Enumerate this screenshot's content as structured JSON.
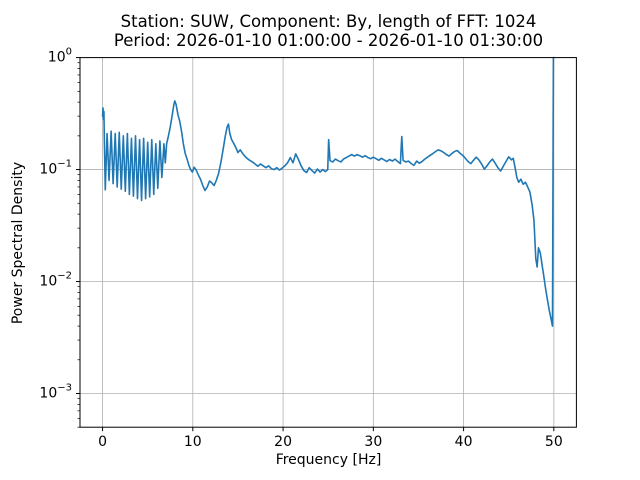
{
  "figure": {
    "title_line1": "Station: SUW, Component: By, length of FFT: 1024",
    "title_line2": "Period: 2026-01-10 01:00:00 - 2026-01-10 01:30:00",
    "xlabel": "Frequency [Hz]",
    "ylabel": "Power Spectral Density"
  },
  "chart_data": {
    "type": "line",
    "title": "Station: SUW, Component: By, length of FFT: 1024\nPeriod: 2026-01-10 01:00:00 - 2026-01-10 01:30:00",
    "xlabel": "Frequency [Hz]",
    "ylabel": "Power Spectral Density",
    "x_scale": "linear",
    "y_scale": "log",
    "xlim": [
      -2.5,
      52.5
    ],
    "ylim": [
      0.0005,
      1.0
    ],
    "x_ticks": [
      0,
      10,
      20,
      30,
      40,
      50
    ],
    "y_tick_exponents": [
      0,
      -1,
      -2,
      -3
    ],
    "grid": true,
    "legend": false,
    "line_color": "#1f77b4",
    "grid_color": "#b0b0b0",
    "spine_color": "#000000",
    "series": [
      {
        "name": "PSD",
        "points": [
          [
            0.0,
            0.3
          ],
          [
            0.05,
            0.355
          ],
          [
            0.1,
            0.28
          ],
          [
            0.15,
            0.33
          ],
          [
            0.2,
            0.18
          ],
          [
            0.3,
            0.066
          ],
          [
            0.5,
            0.21
          ],
          [
            0.72,
            0.08
          ],
          [
            0.95,
            0.22
          ],
          [
            1.17,
            0.075
          ],
          [
            1.4,
            0.21
          ],
          [
            1.62,
            0.07
          ],
          [
            1.85,
            0.215
          ],
          [
            2.07,
            0.067
          ],
          [
            2.3,
            0.2
          ],
          [
            2.52,
            0.064
          ],
          [
            2.75,
            0.21
          ],
          [
            2.97,
            0.06
          ],
          [
            3.2,
            0.19
          ],
          [
            3.42,
            0.058
          ],
          [
            3.65,
            0.2
          ],
          [
            3.87,
            0.055
          ],
          [
            4.1,
            0.185
          ],
          [
            4.32,
            0.053
          ],
          [
            4.55,
            0.19
          ],
          [
            4.77,
            0.055
          ],
          [
            5.0,
            0.175
          ],
          [
            5.22,
            0.057
          ],
          [
            5.45,
            0.185
          ],
          [
            5.67,
            0.06
          ],
          [
            5.9,
            0.17
          ],
          [
            6.12,
            0.068
          ],
          [
            6.35,
            0.18
          ],
          [
            6.57,
            0.085
          ],
          [
            6.8,
            0.17
          ],
          [
            6.95,
            0.115
          ],
          [
            7.1,
            0.17
          ],
          [
            7.3,
            0.2
          ],
          [
            7.5,
            0.24
          ],
          [
            7.7,
            0.3
          ],
          [
            7.9,
            0.38
          ],
          [
            8.0,
            0.41
          ],
          [
            8.15,
            0.38
          ],
          [
            8.35,
            0.31
          ],
          [
            8.55,
            0.27
          ],
          [
            8.75,
            0.22
          ],
          [
            8.95,
            0.17
          ],
          [
            9.15,
            0.14
          ],
          [
            9.35,
            0.125
          ],
          [
            9.55,
            0.11
          ],
          [
            9.75,
            0.1
          ],
          [
            9.95,
            0.095
          ],
          [
            10.15,
            0.105
          ],
          [
            10.35,
            0.1
          ],
          [
            10.6,
            0.09
          ],
          [
            10.85,
            0.082
          ],
          [
            11.1,
            0.072
          ],
          [
            11.35,
            0.065
          ],
          [
            11.6,
            0.07
          ],
          [
            11.85,
            0.079
          ],
          [
            12.1,
            0.076
          ],
          [
            12.35,
            0.072
          ],
          [
            12.6,
            0.08
          ],
          [
            12.85,
            0.092
          ],
          [
            13.1,
            0.115
          ],
          [
            13.35,
            0.15
          ],
          [
            13.6,
            0.2
          ],
          [
            13.8,
            0.24
          ],
          [
            13.95,
            0.255
          ],
          [
            14.1,
            0.21
          ],
          [
            14.3,
            0.185
          ],
          [
            14.55,
            0.17
          ],
          [
            14.8,
            0.155
          ],
          [
            15.0,
            0.142
          ],
          [
            15.25,
            0.15
          ],
          [
            15.5,
            0.14
          ],
          [
            15.75,
            0.132
          ],
          [
            16.0,
            0.126
          ],
          [
            16.3,
            0.121
          ],
          [
            16.6,
            0.117
          ],
          [
            16.9,
            0.112
          ],
          [
            17.2,
            0.107
          ],
          [
            17.5,
            0.112
          ],
          [
            17.8,
            0.108
          ],
          [
            18.1,
            0.104
          ],
          [
            18.4,
            0.108
          ],
          [
            18.7,
            0.102
          ],
          [
            19.0,
            0.1
          ],
          [
            19.3,
            0.104
          ],
          [
            19.6,
            0.099
          ],
          [
            19.9,
            0.103
          ],
          [
            20.2,
            0.108
          ],
          [
            20.5,
            0.115
          ],
          [
            20.8,
            0.128
          ],
          [
            21.1,
            0.115
          ],
          [
            21.4,
            0.138
          ],
          [
            21.7,
            0.123
          ],
          [
            22.0,
            0.108
          ],
          [
            22.3,
            0.098
          ],
          [
            22.6,
            0.094
          ],
          [
            22.9,
            0.104
          ],
          [
            23.2,
            0.098
          ],
          [
            23.5,
            0.093
          ],
          [
            23.8,
            0.101
          ],
          [
            24.1,
            0.095
          ],
          [
            24.4,
            0.1
          ],
          [
            24.7,
            0.096
          ],
          [
            24.95,
            0.1
          ],
          [
            25.05,
            0.185
          ],
          [
            25.2,
            0.12
          ],
          [
            25.5,
            0.117
          ],
          [
            25.8,
            0.124
          ],
          [
            26.1,
            0.12
          ],
          [
            26.4,
            0.117
          ],
          [
            26.7,
            0.124
          ],
          [
            27.0,
            0.128
          ],
          [
            27.3,
            0.132
          ],
          [
            27.6,
            0.136
          ],
          [
            27.9,
            0.132
          ],
          [
            28.2,
            0.136
          ],
          [
            28.5,
            0.133
          ],
          [
            28.8,
            0.129
          ],
          [
            29.1,
            0.133
          ],
          [
            29.4,
            0.128
          ],
          [
            29.7,
            0.125
          ],
          [
            30.0,
            0.129
          ],
          [
            30.3,
            0.125
          ],
          [
            30.6,
            0.121
          ],
          [
            30.9,
            0.126
          ],
          [
            31.2,
            0.122
          ],
          [
            31.5,
            0.118
          ],
          [
            31.8,
            0.123
          ],
          [
            32.1,
            0.119
          ],
          [
            32.4,
            0.124
          ],
          [
            32.7,
            0.118
          ],
          [
            33.0,
            0.113
          ],
          [
            33.15,
            0.197
          ],
          [
            33.3,
            0.121
          ],
          [
            33.6,
            0.117
          ],
          [
            33.9,
            0.119
          ],
          [
            34.2,
            0.113
          ],
          [
            34.5,
            0.109
          ],
          [
            34.8,
            0.119
          ],
          [
            35.1,
            0.114
          ],
          [
            35.4,
            0.118
          ],
          [
            35.7,
            0.124
          ],
          [
            36.0,
            0.129
          ],
          [
            36.3,
            0.134
          ],
          [
            36.6,
            0.139
          ],
          [
            36.9,
            0.145
          ],
          [
            37.2,
            0.15
          ],
          [
            37.5,
            0.147
          ],
          [
            37.8,
            0.142
          ],
          [
            38.1,
            0.136
          ],
          [
            38.4,
            0.132
          ],
          [
            38.7,
            0.139
          ],
          [
            39.0,
            0.145
          ],
          [
            39.3,
            0.148
          ],
          [
            39.6,
            0.14
          ],
          [
            39.9,
            0.134
          ],
          [
            40.2,
            0.126
          ],
          [
            40.5,
            0.118
          ],
          [
            40.8,
            0.113
          ],
          [
            41.1,
            0.121
          ],
          [
            41.4,
            0.129
          ],
          [
            41.7,
            0.122
          ],
          [
            42.0,
            0.112
          ],
          [
            42.3,
            0.101
          ],
          [
            42.6,
            0.108
          ],
          [
            42.9,
            0.117
          ],
          [
            43.2,
            0.124
          ],
          [
            43.5,
            0.114
          ],
          [
            43.8,
            0.104
          ],
          [
            44.1,
            0.097
          ],
          [
            44.4,
            0.107
          ],
          [
            44.7,
            0.118
          ],
          [
            45.0,
            0.13
          ],
          [
            45.3,
            0.122
          ],
          [
            45.5,
            0.126
          ],
          [
            45.7,
            0.105
          ],
          [
            45.9,
            0.085
          ],
          [
            46.1,
            0.077
          ],
          [
            46.35,
            0.082
          ],
          [
            46.6,
            0.074
          ],
          [
            46.85,
            0.077
          ],
          [
            47.1,
            0.07
          ],
          [
            47.35,
            0.063
          ],
          [
            47.6,
            0.048
          ],
          [
            47.8,
            0.035
          ],
          [
            48.0,
            0.016
          ],
          [
            48.15,
            0.0135
          ],
          [
            48.3,
            0.02
          ],
          [
            48.5,
            0.018
          ],
          [
            48.7,
            0.014
          ],
          [
            48.9,
            0.011
          ],
          [
            49.1,
            0.0085
          ],
          [
            49.3,
            0.0068
          ],
          [
            49.5,
            0.0055
          ],
          [
            49.7,
            0.0046
          ],
          [
            49.85,
            0.004
          ],
          [
            49.95,
            1.0
          ],
          [
            50.0,
            1.0
          ]
        ]
      }
    ]
  }
}
